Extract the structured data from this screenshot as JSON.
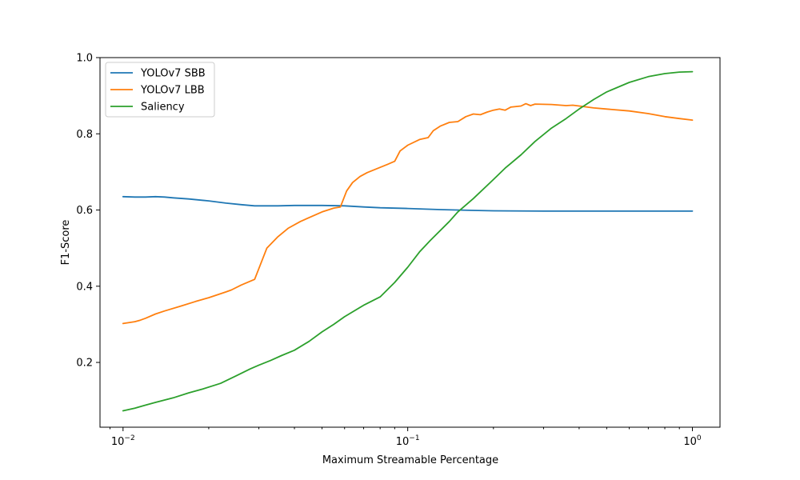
{
  "chart_data": {
    "type": "line",
    "title": "",
    "xlabel": "Maximum Streamable Percentage",
    "ylabel": "F1-Score",
    "xscale": "log",
    "xlim": [
      0.0083,
      1.25
    ],
    "ylim": [
      0.03,
      1.0
    ],
    "grid": false,
    "legend_position": "top-left",
    "x_ticks": [
      {
        "value": 0.01,
        "base": "10",
        "exp": "−2"
      },
      {
        "value": 0.1,
        "base": "10",
        "exp": "−1"
      },
      {
        "value": 1,
        "base": "10",
        "exp": "0"
      }
    ],
    "y_ticks": [
      {
        "value": 0.2,
        "label": "0.2"
      },
      {
        "value": 0.4,
        "label": "0.4"
      },
      {
        "value": 0.6,
        "label": "0.6"
      },
      {
        "value": 0.8,
        "label": "0.8"
      },
      {
        "value": 1.0,
        "label": "1.0"
      }
    ],
    "series": [
      {
        "name": "YOLOv7 SBB",
        "color": "#1f77b4",
        "points": [
          [
            0.01,
            0.635
          ],
          [
            0.011,
            0.634
          ],
          [
            0.012,
            0.634
          ],
          [
            0.013,
            0.635
          ],
          [
            0.014,
            0.634
          ],
          [
            0.015,
            0.632
          ],
          [
            0.017,
            0.629
          ],
          [
            0.02,
            0.624
          ],
          [
            0.023,
            0.618
          ],
          [
            0.026,
            0.614
          ],
          [
            0.029,
            0.611
          ],
          [
            0.032,
            0.611
          ],
          [
            0.035,
            0.611
          ],
          [
            0.04,
            0.612
          ],
          [
            0.05,
            0.612
          ],
          [
            0.06,
            0.611
          ],
          [
            0.07,
            0.608
          ],
          [
            0.08,
            0.606
          ],
          [
            0.1,
            0.604
          ],
          [
            0.13,
            0.601
          ],
          [
            0.17,
            0.599
          ],
          [
            0.2,
            0.598
          ],
          [
            0.3,
            0.597
          ],
          [
            0.5,
            0.597
          ],
          [
            0.7,
            0.597
          ],
          [
            1.0,
            0.597
          ]
        ]
      },
      {
        "name": "YOLOv7 LBB",
        "color": "#ff7f0e",
        "points": [
          [
            0.01,
            0.302
          ],
          [
            0.011,
            0.307
          ],
          [
            0.0115,
            0.311
          ],
          [
            0.012,
            0.316
          ],
          [
            0.013,
            0.327
          ],
          [
            0.014,
            0.335
          ],
          [
            0.016,
            0.348
          ],
          [
            0.018,
            0.36
          ],
          [
            0.02,
            0.37
          ],
          [
            0.023,
            0.385
          ],
          [
            0.024,
            0.39
          ],
          [
            0.026,
            0.403
          ],
          [
            0.029,
            0.418
          ],
          [
            0.032,
            0.5
          ],
          [
            0.035,
            0.53
          ],
          [
            0.038,
            0.552
          ],
          [
            0.042,
            0.57
          ],
          [
            0.05,
            0.595
          ],
          [
            0.055,
            0.605
          ],
          [
            0.058,
            0.608
          ],
          [
            0.061,
            0.65
          ],
          [
            0.064,
            0.672
          ],
          [
            0.068,
            0.688
          ],
          [
            0.072,
            0.698
          ],
          [
            0.08,
            0.712
          ],
          [
            0.085,
            0.72
          ],
          [
            0.09,
            0.728
          ],
          [
            0.094,
            0.755
          ],
          [
            0.1,
            0.77
          ],
          [
            0.11,
            0.785
          ],
          [
            0.118,
            0.79
          ],
          [
            0.123,
            0.808
          ],
          [
            0.13,
            0.82
          ],
          [
            0.14,
            0.83
          ],
          [
            0.15,
            0.832
          ],
          [
            0.16,
            0.845
          ],
          [
            0.17,
            0.852
          ],
          [
            0.18,
            0.85
          ],
          [
            0.19,
            0.857
          ],
          [
            0.2,
            0.862
          ],
          [
            0.21,
            0.865
          ],
          [
            0.22,
            0.862
          ],
          [
            0.23,
            0.87
          ],
          [
            0.25,
            0.873
          ],
          [
            0.26,
            0.879
          ],
          [
            0.27,
            0.874
          ],
          [
            0.28,
            0.878
          ],
          [
            0.32,
            0.877
          ],
          [
            0.36,
            0.874
          ],
          [
            0.38,
            0.875
          ],
          [
            0.4,
            0.873
          ],
          [
            0.45,
            0.868
          ],
          [
            0.5,
            0.865
          ],
          [
            0.6,
            0.86
          ],
          [
            0.7,
            0.853
          ],
          [
            0.8,
            0.845
          ],
          [
            0.9,
            0.84
          ],
          [
            1.0,
            0.836
          ]
        ]
      },
      {
        "name": "Saliency",
        "color": "#2ca02c",
        "points": [
          [
            0.01,
            0.073
          ],
          [
            0.011,
            0.08
          ],
          [
            0.012,
            0.088
          ],
          [
            0.013,
            0.095
          ],
          [
            0.015,
            0.107
          ],
          [
            0.017,
            0.12
          ],
          [
            0.019,
            0.13
          ],
          [
            0.022,
            0.145
          ],
          [
            0.025,
            0.165
          ],
          [
            0.028,
            0.183
          ],
          [
            0.03,
            0.193
          ],
          [
            0.033,
            0.205
          ],
          [
            0.036,
            0.218
          ],
          [
            0.04,
            0.232
          ],
          [
            0.045,
            0.255
          ],
          [
            0.05,
            0.28
          ],
          [
            0.055,
            0.3
          ],
          [
            0.06,
            0.32
          ],
          [
            0.07,
            0.35
          ],
          [
            0.08,
            0.372
          ],
          [
            0.09,
            0.41
          ],
          [
            0.1,
            0.45
          ],
          [
            0.11,
            0.49
          ],
          [
            0.12,
            0.52
          ],
          [
            0.14,
            0.57
          ],
          [
            0.15,
            0.595
          ],
          [
            0.17,
            0.63
          ],
          [
            0.2,
            0.68
          ],
          [
            0.22,
            0.71
          ],
          [
            0.25,
            0.745
          ],
          [
            0.28,
            0.78
          ],
          [
            0.32,
            0.815
          ],
          [
            0.36,
            0.84
          ],
          [
            0.4,
            0.865
          ],
          [
            0.45,
            0.89
          ],
          [
            0.5,
            0.91
          ],
          [
            0.6,
            0.935
          ],
          [
            0.7,
            0.95
          ],
          [
            0.8,
            0.958
          ],
          [
            0.9,
            0.962
          ],
          [
            1.0,
            0.963
          ]
        ]
      }
    ]
  }
}
